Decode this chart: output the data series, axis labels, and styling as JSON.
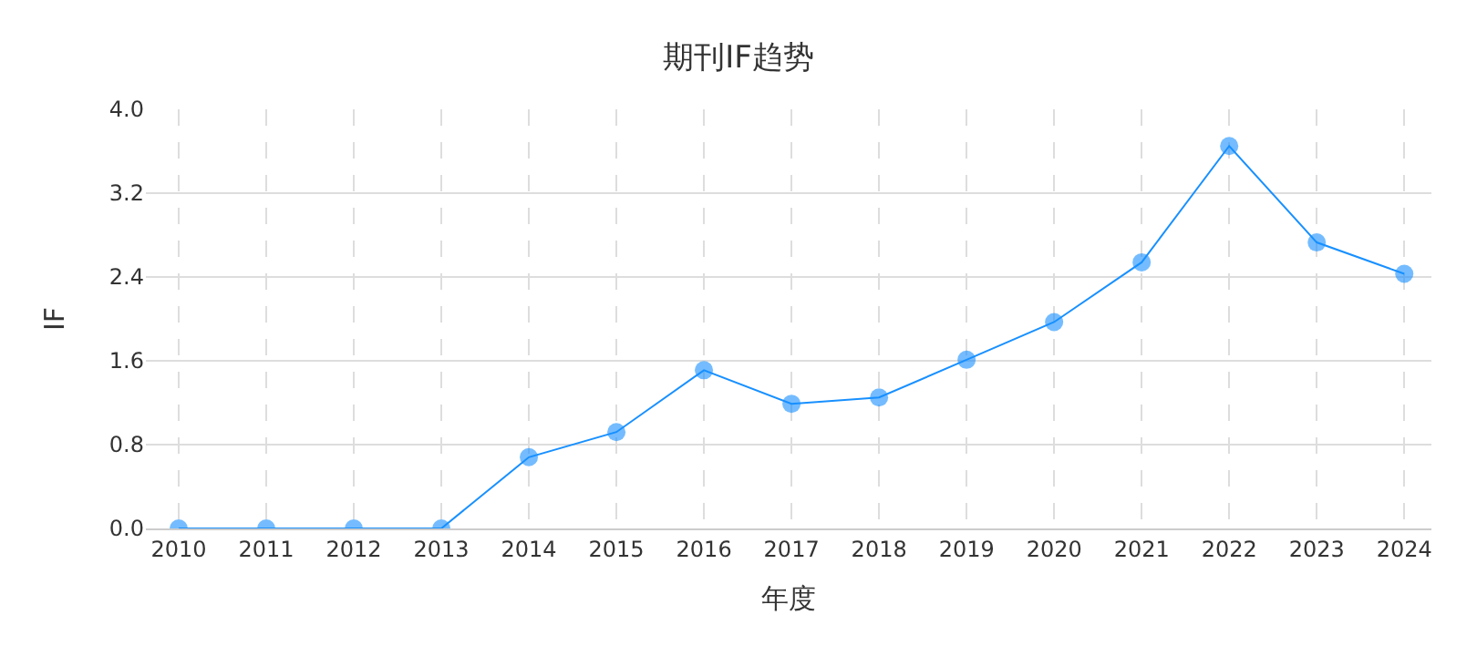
{
  "chart_data": {
    "type": "line",
    "title": "期刊IF趋势",
    "xlabel": "年度",
    "ylabel": "IF",
    "categories": [
      "2010",
      "2011",
      "2012",
      "2013",
      "2014",
      "2015",
      "2016",
      "2017",
      "2018",
      "2019",
      "2020",
      "2021",
      "2022",
      "2023",
      "2024"
    ],
    "series": [
      {
        "color": "#1890ff",
        "values": [
          0,
          0,
          0,
          0,
          0.68,
          0.92,
          1.51,
          1.19,
          1.25,
          1.61,
          1.97,
          2.54,
          3.65,
          2.73,
          2.43
        ]
      }
    ],
    "ylim": [
      0,
      4.0
    ],
    "yticks": [
      {
        "value": 0,
        "label": "0.0"
      },
      {
        "value": 0.8,
        "label": "0.8"
      },
      {
        "value": 1.6,
        "label": "1.6"
      },
      {
        "value": 2.4,
        "label": "2.4"
      },
      {
        "value": 3.2,
        "label": "3.2"
      },
      {
        "value": 4.0,
        "label": "4.0"
      }
    ],
    "grid": true,
    "marker": "circle",
    "line_style": "solid",
    "legend": false
  }
}
